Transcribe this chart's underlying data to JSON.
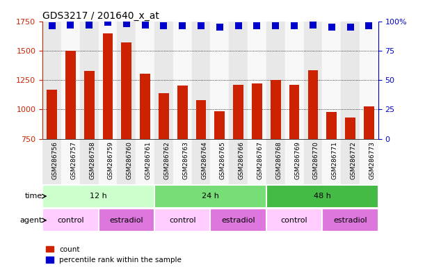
{
  "title": "GDS3217 / 201640_x_at",
  "samples": [
    "GSM286756",
    "GSM286757",
    "GSM286758",
    "GSM286759",
    "GSM286760",
    "GSM286761",
    "GSM286762",
    "GSM286763",
    "GSM286764",
    "GSM286765",
    "GSM286766",
    "GSM286767",
    "GSM286768",
    "GSM286769",
    "GSM286770",
    "GSM286771",
    "GSM286772",
    "GSM286773"
  ],
  "counts": [
    1170,
    1500,
    1330,
    1650,
    1570,
    1305,
    1140,
    1205,
    1080,
    985,
    1210,
    1220,
    1250,
    1210,
    1335,
    980,
    930,
    1025
  ],
  "percentiles": [
    96,
    97,
    97,
    99,
    98,
    97,
    96,
    96,
    96,
    95,
    96,
    96,
    96,
    96,
    97,
    95,
    95,
    96
  ],
  "ylim_left": [
    750,
    1750
  ],
  "ylim_right": [
    0,
    100
  ],
  "yticks_left": [
    750,
    1000,
    1250,
    1500,
    1750
  ],
  "yticks_right": [
    0,
    25,
    50,
    75,
    100
  ],
  "bar_color": "#cc2200",
  "dot_color": "#0000cc",
  "time_groups": [
    {
      "label": "12 h",
      "start": 0,
      "end": 6,
      "color": "#ccffcc"
    },
    {
      "label": "24 h",
      "start": 6,
      "end": 12,
      "color": "#77dd77"
    },
    {
      "label": "48 h",
      "start": 12,
      "end": 18,
      "color": "#44bb44"
    }
  ],
  "agent_groups": [
    {
      "label": "control",
      "start": 0,
      "end": 3,
      "color": "#ffccff"
    },
    {
      "label": "estradiol",
      "start": 3,
      "end": 6,
      "color": "#dd77dd"
    },
    {
      "label": "control",
      "start": 6,
      "end": 9,
      "color": "#ffccff"
    },
    {
      "label": "estradiol",
      "start": 9,
      "end": 12,
      "color": "#dd77dd"
    },
    {
      "label": "control",
      "start": 12,
      "end": 15,
      "color": "#ffccff"
    },
    {
      "label": "estradiol",
      "start": 15,
      "end": 18,
      "color": "#dd77dd"
    }
  ],
  "bar_width": 0.55,
  "dot_size": 55,
  "col_colors": [
    "#e8e8e8",
    "#f8f8f8"
  ]
}
